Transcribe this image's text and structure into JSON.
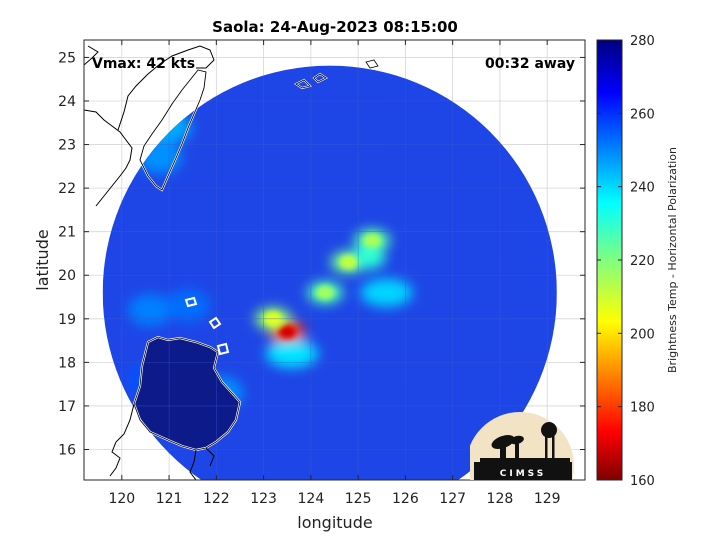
{
  "chart_data": {
    "type": "heatmap",
    "title": "Saola: 24-Aug-2023 08:15:00",
    "xlabel": "longitude",
    "ylabel": "latitude",
    "xlim": [
      119.2,
      129.8
    ],
    "ylim": [
      15.3,
      25.4
    ],
    "xticks": [
      120,
      121,
      122,
      123,
      124,
      125,
      126,
      127,
      128,
      129
    ],
    "yticks": [
      16,
      17,
      18,
      19,
      20,
      21,
      22,
      23,
      24,
      25
    ],
    "grid": true,
    "annotations": {
      "vmax": "Vmax: 42 kts",
      "time_offset": "00:32 away"
    },
    "colorbar": {
      "label": "Brightness Temp - Horizontal Polarization",
      "range": [
        160,
        280
      ],
      "ticks": [
        160,
        180,
        200,
        220,
        240,
        260,
        280
      ],
      "colormap": "jet"
    },
    "swath": {
      "center": [
        124.4,
        19.6
      ],
      "radius_deg": 5.0
    },
    "cold_features": [
      {
        "lon": 123.5,
        "lat": 18.7,
        "tb": 180
      },
      {
        "lon": 123.2,
        "lat": 19.0,
        "tb": 218
      },
      {
        "lon": 124.3,
        "lat": 19.6,
        "tb": 226
      },
      {
        "lon": 124.8,
        "lat": 20.3,
        "tb": 222
      },
      {
        "lon": 125.3,
        "lat": 20.8,
        "tb": 225
      },
      {
        "lon": 125.2,
        "lat": 20.4,
        "tb": 230
      },
      {
        "lon": 123.6,
        "lat": 18.2,
        "tb": 238
      },
      {
        "lon": 125.6,
        "lat": 19.6,
        "tb": 240
      }
    ],
    "land_warm": [
      {
        "lon": 121.0,
        "lat": 23.4,
        "tb": 245
      },
      {
        "lon": 120.8,
        "lat": 22.7,
        "tb": 248
      },
      {
        "lon": 120.6,
        "lat": 19.2,
        "tb": 250
      },
      {
        "lon": 121.4,
        "lat": 19.3,
        "tb": 252
      },
      {
        "lon": 122.1,
        "lat": 17.3,
        "tb": 248
      },
      {
        "lon": 120.6,
        "lat": 17.6,
        "tb": 255
      }
    ]
  },
  "logo": {
    "text": "CIMSS"
  },
  "colors": {
    "land_luzon": "#0d1a8a",
    "background_ocean": "#1e46e6",
    "coast": "#ffffff"
  }
}
